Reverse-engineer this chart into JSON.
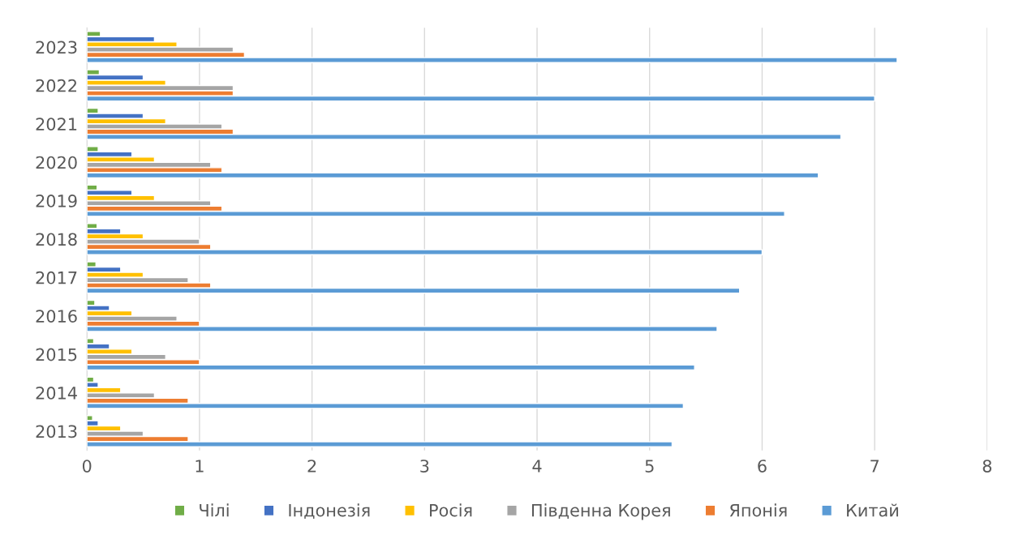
{
  "chart_data": {
    "type": "bar",
    "orientation": "horizontal",
    "categories": [
      "2023",
      "2022",
      "2021",
      "2020",
      "2019",
      "2018",
      "2017",
      "2016",
      "2015",
      "2014",
      "2013"
    ],
    "series": [
      {
        "name": "Чілі",
        "color": "#70ad47",
        "values": [
          0.12,
          0.11,
          0.1,
          0.1,
          0.09,
          0.09,
          0.08,
          0.07,
          0.06,
          0.06,
          0.05
        ]
      },
      {
        "name": "Індонезія",
        "color": "#4472c4",
        "values": [
          0.6,
          0.5,
          0.5,
          0.4,
          0.4,
          0.3,
          0.3,
          0.2,
          0.2,
          0.1,
          0.1
        ]
      },
      {
        "name": "Росія",
        "color": "#ffc000",
        "values": [
          0.8,
          0.7,
          0.7,
          0.6,
          0.6,
          0.5,
          0.5,
          0.4,
          0.4,
          0.3,
          0.3
        ]
      },
      {
        "name": "Південна Корея",
        "color": "#a5a5a5",
        "values": [
          1.3,
          1.3,
          1.2,
          1.1,
          1.1,
          1.0,
          0.9,
          0.8,
          0.7,
          0.6,
          0.5
        ]
      },
      {
        "name": "Японія",
        "color": "#ed7d31",
        "values": [
          1.4,
          1.3,
          1.3,
          1.2,
          1.2,
          1.1,
          1.1,
          1.0,
          1.0,
          0.9,
          0.9
        ]
      },
      {
        "name": "Китай",
        "color": "#5b9bd5",
        "values": [
          7.2,
          7.0,
          6.7,
          6.5,
          6.2,
          6.0,
          5.8,
          5.6,
          5.4,
          5.3,
          5.2
        ]
      }
    ],
    "xlim": [
      0,
      8
    ],
    "xticks": [
      0,
      1,
      2,
      3,
      4,
      5,
      6,
      7,
      8
    ],
    "grid": "x",
    "legend": "bottom"
  }
}
